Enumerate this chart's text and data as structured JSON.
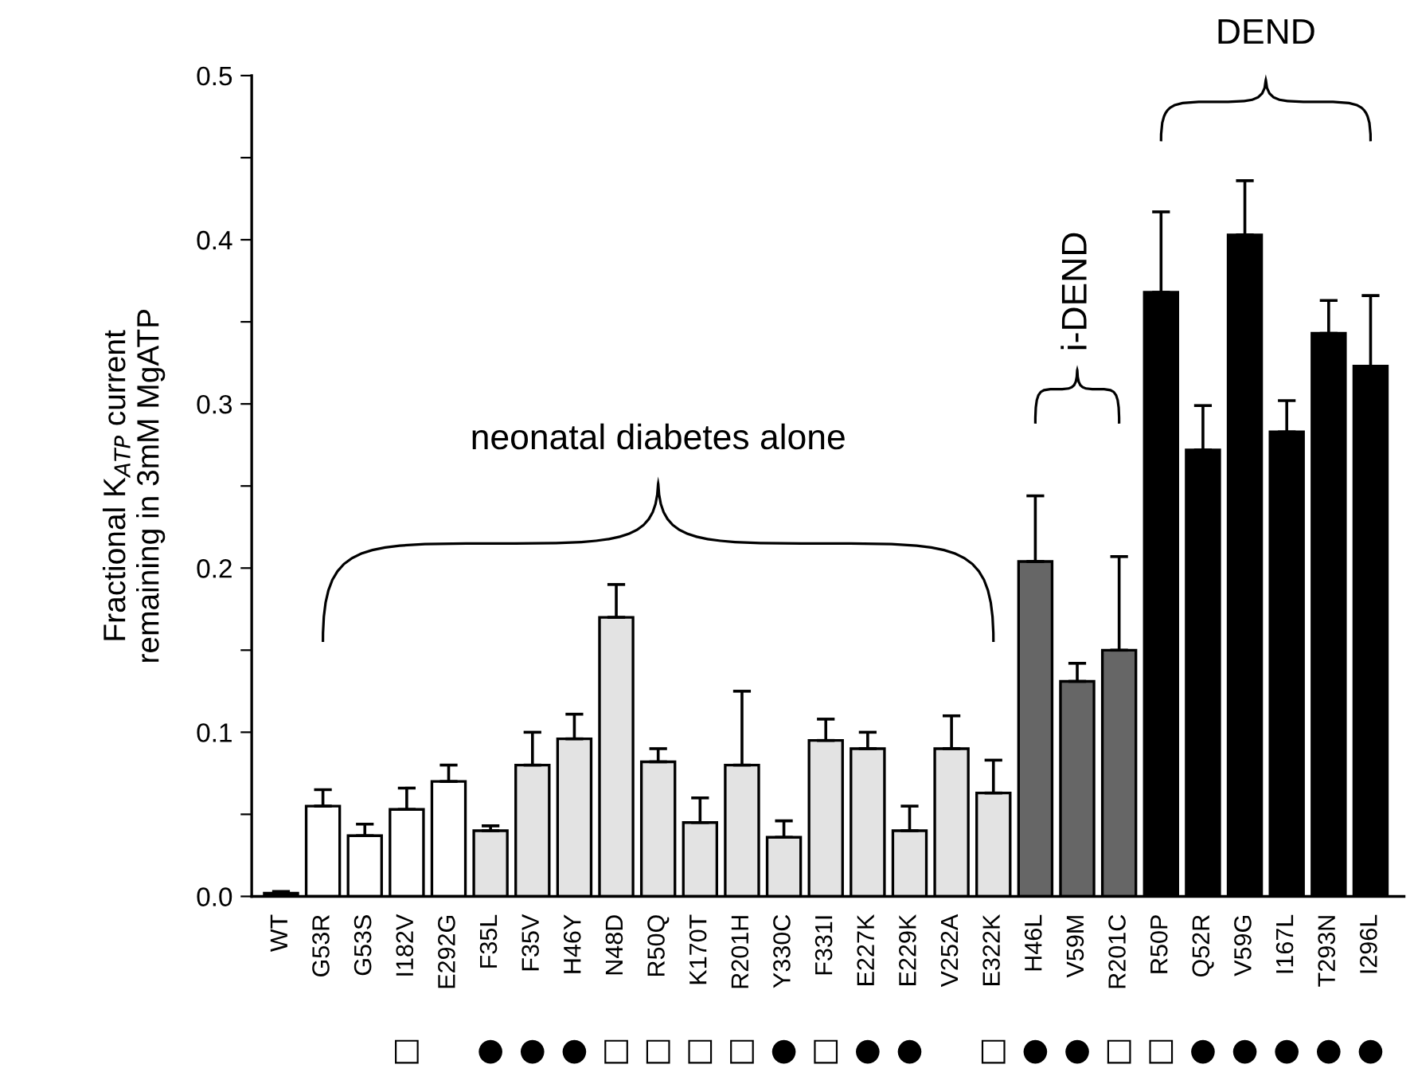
{
  "chart_data": {
    "type": "bar",
    "ylabel": "Fractional K$_{ATP}$ current\nremaining in 3mM MgATP",
    "categories": [
      "WT",
      "G53R",
      "G53S",
      "I182V",
      "E292G",
      "F35L",
      "F35V",
      "H46Y",
      "N48D",
      "R50Q",
      "K170T",
      "R201H",
      "Y330C",
      "F331I",
      "E227K",
      "E229K",
      "V252A",
      "E322K",
      "H46L",
      "V59M",
      "R201C",
      "R50P",
      "Q52R",
      "V59G",
      "I167L",
      "T293N",
      "I296L"
    ],
    "values": [
      0.002,
      0.055,
      0.037,
      0.053,
      0.07,
      0.04,
      0.08,
      0.096,
      0.17,
      0.082,
      0.045,
      0.08,
      0.036,
      0.095,
      0.09,
      0.04,
      0.09,
      0.063,
      0.204,
      0.131,
      0.15,
      0.368,
      0.272,
      0.403,
      0.283,
      0.343,
      0.323
    ],
    "errors": [
      [
        0.002,
        0.003
      ],
      [
        0.055,
        0.065
      ],
      [
        0.037,
        0.044
      ],
      [
        0.053,
        0.066
      ],
      [
        0.07,
        0.08
      ],
      [
        0.04,
        0.043
      ],
      [
        0.08,
        0.1
      ],
      [
        0.096,
        0.111
      ],
      [
        0.17,
        0.19
      ],
      [
        0.082,
        0.09
      ],
      [
        0.045,
        0.06
      ],
      [
        0.08,
        0.125
      ],
      [
        0.036,
        0.046
      ],
      [
        0.095,
        0.108
      ],
      [
        0.09,
        0.1
      ],
      [
        0.04,
        0.055
      ],
      [
        0.09,
        0.11
      ],
      [
        0.063,
        0.083
      ],
      [
        0.204,
        0.244
      ],
      [
        0.131,
        0.142
      ],
      [
        0.15,
        0.207
      ],
      [
        0.368,
        0.417
      ],
      [
        0.272,
        0.299
      ],
      [
        0.403,
        0.436
      ],
      [
        0.283,
        0.302
      ],
      [
        0.343,
        0.363
      ],
      [
        0.323,
        0.366
      ]
    ],
    "colors": [
      "#000000",
      "#ffffff",
      "#ffffff",
      "#ffffff",
      "#ffffff",
      "#e3e3e3",
      "#e3e3e3",
      "#e3e3e3",
      "#e3e3e3",
      "#e3e3e3",
      "#e3e3e3",
      "#e3e3e3",
      "#e3e3e3",
      "#e3e3e3",
      "#e3e3e3",
      "#e3e3e3",
      "#e3e3e3",
      "#e3e3e3",
      "#666666",
      "#666666",
      "#666666",
      "#000000",
      "#000000",
      "#000000",
      "#000000",
      "#000000",
      "#000000"
    ],
    "ylim": [
      0,
      0.5
    ],
    "yticks": [
      {
        "value": 0,
        "label": "0.0"
      },
      {
        "value": 0.05,
        "label": null
      },
      0.1,
      {
        "value": 0.15,
        "label": null
      },
      0.2,
      {
        "value": 0.25,
        "label": null
      },
      0.3,
      {
        "value": 0.35,
        "label": null
      },
      0.4,
      {
        "value": 0.45,
        "label": null
      },
      0.5
    ],
    "grid": false,
    "legend": false,
    "annotations": [
      "neonatal diabetes alone",
      "i-DEND",
      "DEND",
      "□",
      "●",
      "●",
      "●",
      "□",
      "□",
      "□",
      "□",
      "●",
      "□",
      "●",
      "●",
      "□",
      "●",
      "●",
      "□",
      "□",
      "●",
      "●",
      "●",
      "●",
      "●"
    ]
  }
}
